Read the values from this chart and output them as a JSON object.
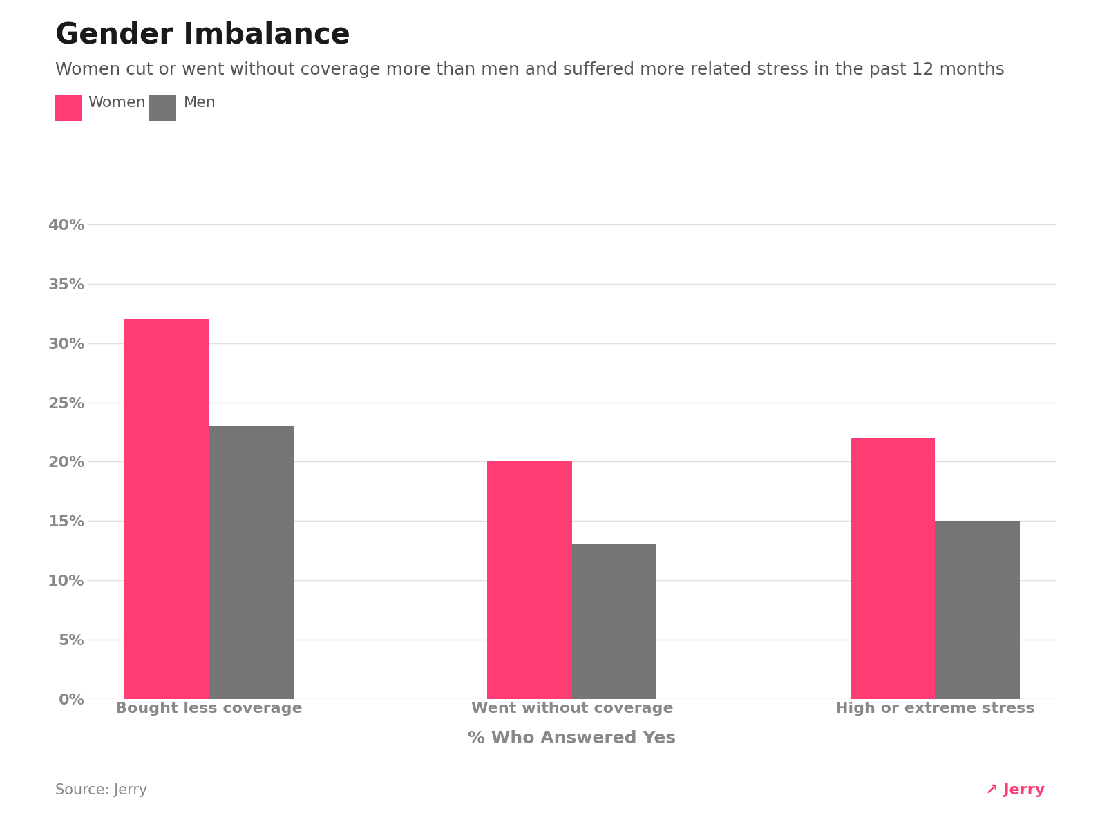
{
  "title": "Gender Imbalance",
  "subtitle": "Women cut or went without coverage more than men and suffered more related stress in the past 12 months",
  "categories": [
    "Bought less coverage",
    "Went without coverage",
    "High or extreme stress"
  ],
  "women_values": [
    0.32,
    0.2,
    0.22
  ],
  "men_values": [
    0.23,
    0.13,
    0.15
  ],
  "women_color": "#FF3D74",
  "men_color": "#757575",
  "title_fontsize": 30,
  "subtitle_fontsize": 18,
  "legend_fontsize": 16,
  "tick_fontsize": 16,
  "xlabel": "% Who Answered Yes",
  "xlabel_fontsize": 18,
  "ylabel_ticks": [
    0,
    0.05,
    0.1,
    0.15,
    0.2,
    0.25,
    0.3,
    0.35,
    0.4
  ],
  "ylim": [
    0,
    0.43
  ],
  "background_color": "#ffffff",
  "source_text": "Source: Jerry",
  "jerry_text": "↗ Jerry",
  "bar_width": 0.35,
  "title_color": "#1a1a1a",
  "subtitle_color": "#555555",
  "tick_color": "#888888",
  "grid_color": "#e0e0e0",
  "source_color": "#888888"
}
